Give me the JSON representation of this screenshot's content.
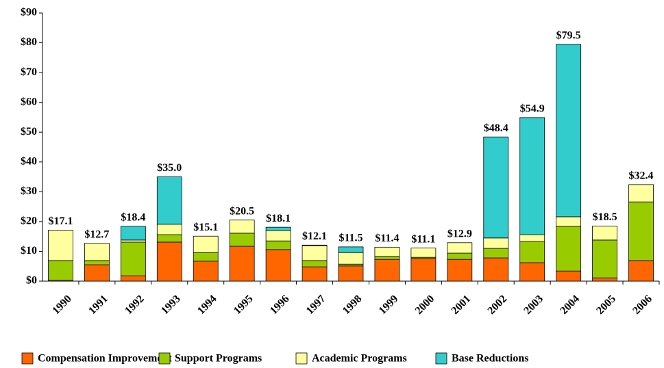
{
  "chart_data": {
    "type": "stacked-bar",
    "categories": [
      "1990",
      "1991",
      "1992",
      "1993",
      "1994",
      "1995",
      "1996",
      "1997",
      "1998",
      "1999",
      "2000",
      "2001",
      "2002",
      "2003",
      "2004",
      "2005",
      "2006"
    ],
    "series": [
      {
        "name": "Compensation Improvement",
        "color": "#ff6600",
        "values": [
          0.3,
          5.5,
          1.8,
          13.1,
          6.7,
          11.7,
          10.6,
          4.8,
          5.1,
          7.3,
          7.6,
          7.3,
          7.8,
          6.2,
          3.4,
          1.1,
          6.9
        ]
      },
      {
        "name": "Support Programs",
        "color": "#99cc00",
        "values": [
          6.6,
          1.4,
          11.3,
          2.5,
          2.9,
          4.4,
          2.9,
          2.1,
          0.6,
          1.0,
          0.4,
          2.1,
          3.2,
          7.1,
          15.0,
          12.7,
          19.7
        ]
      },
      {
        "name": "Academic Programs",
        "color": "#ffffa0",
        "values": [
          10.2,
          5.8,
          0.7,
          3.5,
          5.5,
          4.4,
          3.5,
          5.0,
          3.9,
          3.1,
          3.1,
          3.5,
          3.5,
          2.3,
          3.2,
          4.7,
          5.8
        ]
      },
      {
        "name": "Base Reductions",
        "color": "#33cccc",
        "values": [
          0,
          0,
          4.6,
          15.9,
          0,
          0,
          1.1,
          0.2,
          1.9,
          0,
          0,
          0,
          33.9,
          39.3,
          57.9,
          0,
          0
        ]
      }
    ],
    "totals": {
      "values": [
        17.1,
        12.7,
        18.4,
        35.0,
        15.1,
        20.5,
        18.1,
        12.1,
        11.5,
        11.4,
        11.1,
        12.9,
        48.4,
        54.9,
        79.5,
        18.5,
        32.4
      ],
      "value_labels": [
        "$17.1",
        "$12.7",
        "$18.4",
        "$35.0",
        "$15.1",
        "$20.5",
        "$18.1",
        "$12.1",
        "$11.5",
        "$11.4",
        "$11.1",
        "$12.9",
        "$48.4",
        "$54.9",
        "$79.5",
        "$18.5",
        "$32.4"
      ]
    },
    "ylim": [
      0,
      90
    ],
    "yticks": [
      {
        "value": 0,
        "label": "$0"
      },
      {
        "value": 10,
        "label": "$10"
      },
      {
        "value": 20,
        "label": "$20"
      },
      {
        "value": 30,
        "label": "$30"
      },
      {
        "value": 40,
        "label": "$40"
      },
      {
        "value": 50,
        "label": "$50"
      },
      {
        "value": 60,
        "label": "$60"
      },
      {
        "value": 70,
        "label": "$70"
      },
      {
        "value": 80,
        "label": "$80"
      },
      {
        "value": 90,
        "label": "$90"
      }
    ],
    "legend": "bottom"
  }
}
